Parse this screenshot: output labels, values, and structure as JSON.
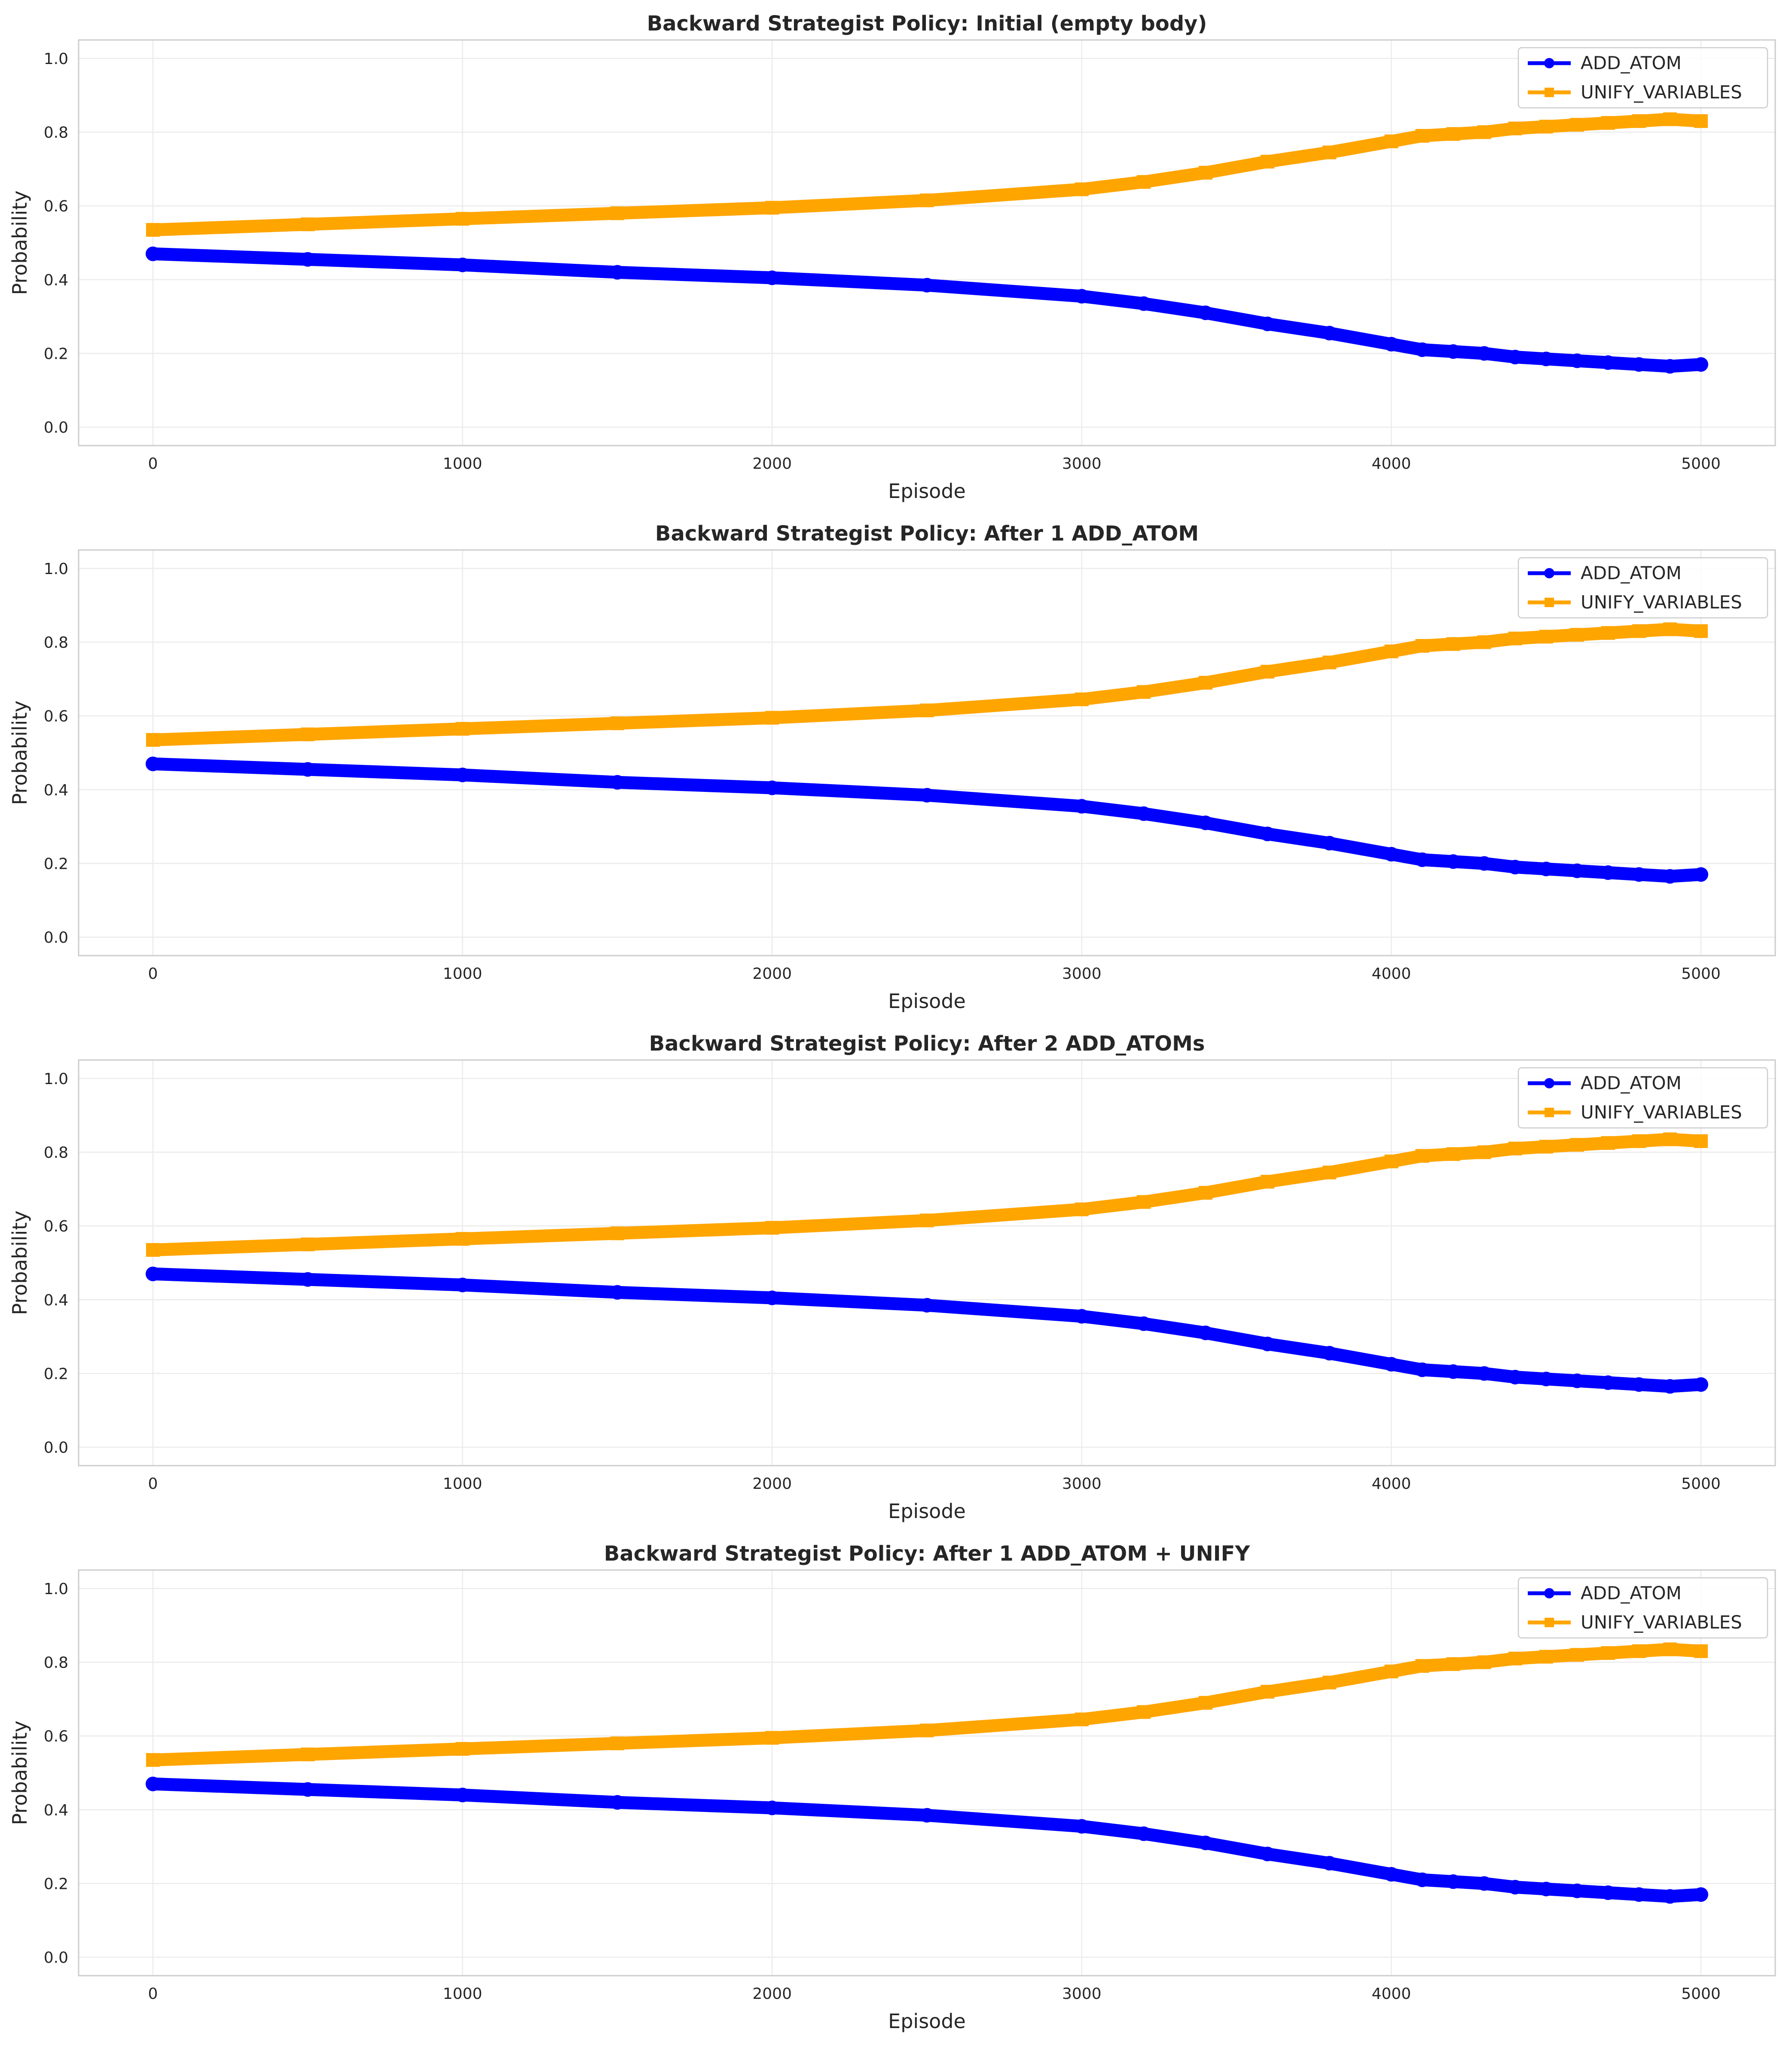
{
  "chart_data": [
    {
      "type": "line",
      "title": "Backward Strategist Policy: Initial (empty body)",
      "xlabel": "Episode",
      "ylabel": "Probability",
      "xlim": [
        -240,
        5240
      ],
      "ylim": [
        -0.05,
        1.05
      ],
      "xticks": [
        0,
        1000,
        2000,
        3000,
        4000,
        5000
      ],
      "yticks": [
        0.0,
        0.2,
        0.4,
        0.6,
        0.8,
        1.0
      ],
      "grid": true,
      "legend_position": "upper right",
      "x": [
        0,
        500,
        1000,
        1500,
        2000,
        2500,
        3000,
        3200,
        3400,
        3600,
        3800,
        4000,
        4100,
        4200,
        4300,
        4400,
        4500,
        4600,
        4700,
        4800,
        4900,
        5000
      ],
      "series": [
        {
          "name": "ADD_ATOM",
          "color": "#0000ff",
          "marker": "circle",
          "values": [
            0.47,
            0.455,
            0.44,
            0.42,
            0.405,
            0.385,
            0.355,
            0.335,
            0.31,
            0.28,
            0.255,
            0.225,
            0.21,
            0.205,
            0.2,
            0.19,
            0.185,
            0.18,
            0.175,
            0.17,
            0.165,
            0.17
          ]
        },
        {
          "name": "UNIFY_VARIABLES",
          "color": "#ffa500",
          "marker": "square",
          "values": [
            0.535,
            0.55,
            0.565,
            0.58,
            0.595,
            0.615,
            0.645,
            0.665,
            0.69,
            0.72,
            0.745,
            0.775,
            0.79,
            0.795,
            0.8,
            0.81,
            0.815,
            0.82,
            0.825,
            0.83,
            0.835,
            0.83
          ]
        }
      ]
    },
    {
      "type": "line",
      "title": "Backward Strategist Policy: After 1 ADD_ATOM",
      "xlabel": "Episode",
      "ylabel": "Probability",
      "xlim": [
        -240,
        5240
      ],
      "ylim": [
        -0.05,
        1.05
      ],
      "xticks": [
        0,
        1000,
        2000,
        3000,
        4000,
        5000
      ],
      "yticks": [
        0.0,
        0.2,
        0.4,
        0.6,
        0.8,
        1.0
      ],
      "grid": true,
      "legend_position": "upper right",
      "x": [
        0,
        500,
        1000,
        1500,
        2000,
        2500,
        3000,
        3200,
        3400,
        3600,
        3800,
        4000,
        4100,
        4200,
        4300,
        4400,
        4500,
        4600,
        4700,
        4800,
        4900,
        5000
      ],
      "series": [
        {
          "name": "ADD_ATOM",
          "color": "#0000ff",
          "marker": "circle",
          "values": [
            0.47,
            0.455,
            0.44,
            0.42,
            0.405,
            0.385,
            0.355,
            0.335,
            0.31,
            0.28,
            0.255,
            0.225,
            0.21,
            0.205,
            0.2,
            0.19,
            0.185,
            0.18,
            0.175,
            0.17,
            0.165,
            0.17
          ]
        },
        {
          "name": "UNIFY_VARIABLES",
          "color": "#ffa500",
          "marker": "square",
          "values": [
            0.535,
            0.55,
            0.565,
            0.58,
            0.595,
            0.615,
            0.645,
            0.665,
            0.69,
            0.72,
            0.745,
            0.775,
            0.79,
            0.795,
            0.8,
            0.81,
            0.815,
            0.82,
            0.825,
            0.83,
            0.835,
            0.83
          ]
        }
      ]
    },
    {
      "type": "line",
      "title": "Backward Strategist Policy: After 2 ADD_ATOMs",
      "xlabel": "Episode",
      "ylabel": "Probability",
      "xlim": [
        -240,
        5240
      ],
      "ylim": [
        -0.05,
        1.05
      ],
      "xticks": [
        0,
        1000,
        2000,
        3000,
        4000,
        5000
      ],
      "yticks": [
        0.0,
        0.2,
        0.4,
        0.6,
        0.8,
        1.0
      ],
      "grid": true,
      "legend_position": "upper right",
      "x": [
        0,
        500,
        1000,
        1500,
        2000,
        2500,
        3000,
        3200,
        3400,
        3600,
        3800,
        4000,
        4100,
        4200,
        4300,
        4400,
        4500,
        4600,
        4700,
        4800,
        4900,
        5000
      ],
      "series": [
        {
          "name": "ADD_ATOM",
          "color": "#0000ff",
          "marker": "circle",
          "values": [
            0.47,
            0.455,
            0.44,
            0.42,
            0.405,
            0.385,
            0.355,
            0.335,
            0.31,
            0.28,
            0.255,
            0.225,
            0.21,
            0.205,
            0.2,
            0.19,
            0.185,
            0.18,
            0.175,
            0.17,
            0.165,
            0.17
          ]
        },
        {
          "name": "UNIFY_VARIABLES",
          "color": "#ffa500",
          "marker": "square",
          "values": [
            0.535,
            0.55,
            0.565,
            0.58,
            0.595,
            0.615,
            0.645,
            0.665,
            0.69,
            0.72,
            0.745,
            0.775,
            0.79,
            0.795,
            0.8,
            0.81,
            0.815,
            0.82,
            0.825,
            0.83,
            0.835,
            0.83
          ]
        }
      ]
    },
    {
      "type": "line",
      "title": "Backward Strategist Policy: After 1 ADD_ATOM + UNIFY",
      "xlabel": "Episode",
      "ylabel": "Probability",
      "xlim": [
        -240,
        5240
      ],
      "ylim": [
        -0.05,
        1.05
      ],
      "xticks": [
        0,
        1000,
        2000,
        3000,
        4000,
        5000
      ],
      "yticks": [
        0.0,
        0.2,
        0.4,
        0.6,
        0.8,
        1.0
      ],
      "grid": true,
      "legend_position": "upper right",
      "x": [
        0,
        500,
        1000,
        1500,
        2000,
        2500,
        3000,
        3200,
        3400,
        3600,
        3800,
        4000,
        4100,
        4200,
        4300,
        4400,
        4500,
        4600,
        4700,
        4800,
        4900,
        5000
      ],
      "series": [
        {
          "name": "ADD_ATOM",
          "color": "#0000ff",
          "marker": "circle",
          "values": [
            0.47,
            0.455,
            0.44,
            0.42,
            0.405,
            0.385,
            0.355,
            0.335,
            0.31,
            0.28,
            0.255,
            0.225,
            0.21,
            0.205,
            0.2,
            0.19,
            0.185,
            0.18,
            0.175,
            0.17,
            0.165,
            0.17
          ]
        },
        {
          "name": "UNIFY_VARIABLES",
          "color": "#ffa500",
          "marker": "square",
          "values": [
            0.535,
            0.55,
            0.565,
            0.58,
            0.595,
            0.615,
            0.645,
            0.665,
            0.69,
            0.72,
            0.745,
            0.775,
            0.79,
            0.795,
            0.8,
            0.81,
            0.815,
            0.82,
            0.825,
            0.83,
            0.835,
            0.83
          ]
        }
      ]
    }
  ]
}
